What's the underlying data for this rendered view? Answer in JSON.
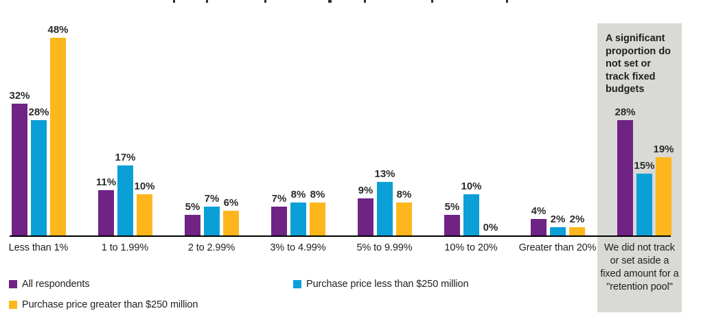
{
  "colors": {
    "purple": "#6E2385",
    "blue": "#0AA0D7",
    "yellow": "#FDB71C",
    "panel_background": "#D9D9D5",
    "axis": "#000000",
    "text": "#1E1E1E"
  },
  "callout": {
    "text": "A significant proportion do not set or track fixed budgets"
  },
  "legend": [
    {
      "label": "All respondents",
      "color": "#6E2385"
    },
    {
      "label": "Purchase price less than $250 million",
      "color": "#0AA0D7"
    },
    {
      "label": "Purchase price greater than $250 million",
      "color": "#FDB71C"
    }
  ],
  "chart_data": {
    "type": "bar",
    "categories": [
      "Less than 1%",
      "1 to 1.99%",
      "2 to 2.99%",
      "3% to 4.99%",
      "5% to 9.99%",
      "10% to 20%",
      "Greater than 20%",
      "We did not track or set aside a fixed amount for a \"retention pool\""
    ],
    "series": [
      {
        "name": "All respondents",
        "color": "#6E2385",
        "values": [
          32,
          11,
          5,
          7,
          9,
          5,
          4,
          28
        ]
      },
      {
        "name": "Purchase price less than $250 million",
        "color": "#0AA0D7",
        "values": [
          28,
          17,
          7,
          8,
          13,
          10,
          2,
          15
        ]
      },
      {
        "name": "Purchase price greater than $250 million",
        "color": "#FDB71C",
        "values": [
          48,
          10,
          6,
          8,
          8,
          0,
          2,
          19
        ]
      }
    ],
    "value_label_format": "{v}%",
    "ylim": [
      0,
      50
    ],
    "grid": false,
    "legend_position": "bottom-left",
    "highlight_panel": {
      "category_index": 7,
      "text": "A significant proportion do not set or track fixed budgets",
      "background": "#D9D9D5"
    }
  }
}
